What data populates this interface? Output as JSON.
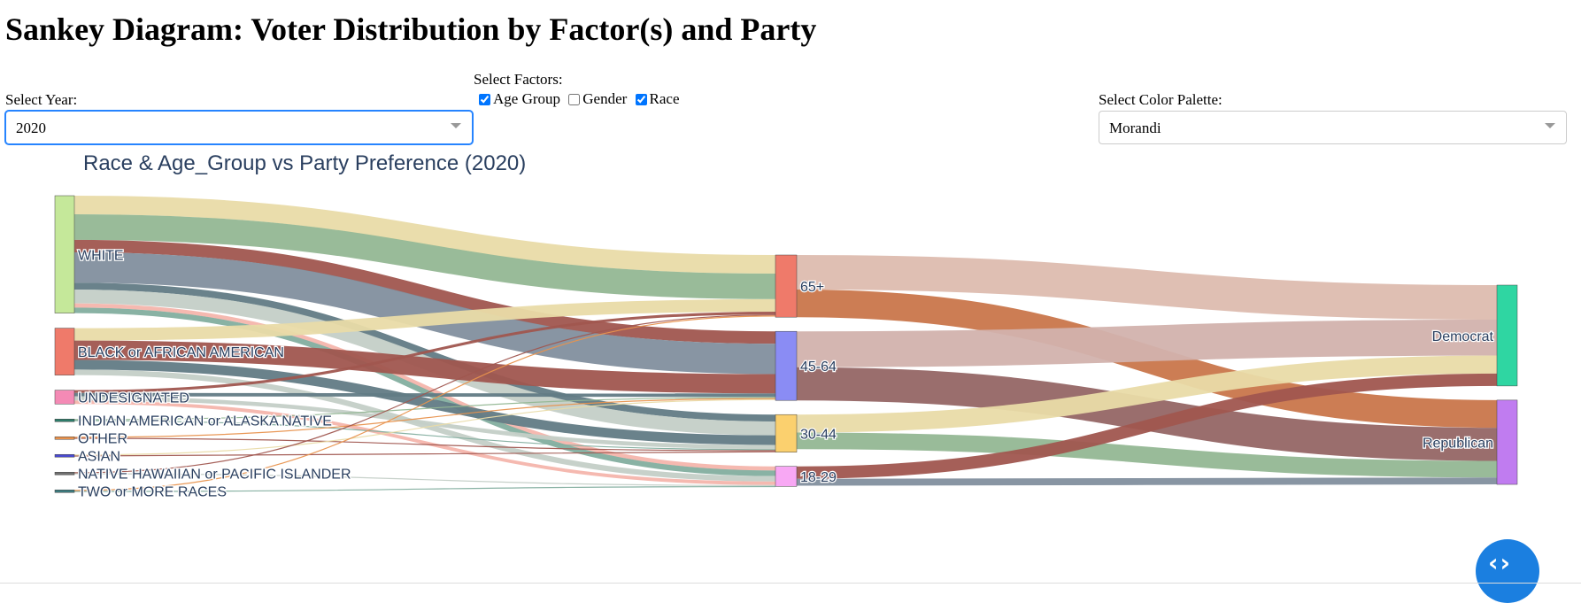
{
  "page": {
    "title": "Sankey Diagram: Voter Distribution by Factor(s) and Party"
  },
  "controls": {
    "year": {
      "label": "Select Year:",
      "value": "2020"
    },
    "factors": {
      "label": "Select Factors:",
      "options": [
        {
          "label": "Age Group",
          "checked": true
        },
        {
          "label": "Gender",
          "checked": false
        },
        {
          "label": "Race",
          "checked": true
        }
      ]
    },
    "palette": {
      "label": "Select Color Palette:",
      "value": "Morandi"
    }
  },
  "chart_data": {
    "type": "sankey",
    "title": "Race & Age_Group vs Party Preference (2020)",
    "units": "relative share (estimated from band widths)",
    "nodes": [
      {
        "label": "WHITE",
        "color": "#c5e89a"
      },
      {
        "label": "BLACK or AFRICAN AMERICAN",
        "color": "#ef7a6a"
      },
      {
        "label": "UNDESIGNATED",
        "color": "#f48ab5"
      },
      {
        "label": "INDIAN AMERICAN or ALASKA NATIVE",
        "color": "#2e7d6b"
      },
      {
        "label": "OTHER",
        "color": "#e8924d"
      },
      {
        "label": "ASIAN",
        "color": "#4a4ad0"
      },
      {
        "label": "NATIVE HAWAIIAN or PACIFIC ISLANDER",
        "color": "#707070"
      },
      {
        "label": "TWO or MORE RACES",
        "color": "#3d7b7e"
      },
      {
        "label": "65+",
        "color": "#ef7a6a"
      },
      {
        "label": "45-64",
        "color": "#8a8cf4"
      },
      {
        "label": "30-44",
        "color": "#fbd06e"
      },
      {
        "label": "18-29",
        "color": "#f8a8f4"
      },
      {
        "label": "Democrat",
        "color": "#2fd6a2"
      },
      {
        "label": "Republican",
        "color": "#c07cf0"
      }
    ],
    "links": [
      {
        "source": "WHITE",
        "target": "65+",
        "value": 27,
        "color": "#e9dba8"
      },
      {
        "source": "WHITE",
        "target": "65+",
        "value": 37,
        "color": "#93b793"
      },
      {
        "source": "WHITE",
        "target": "45-64",
        "value": 18,
        "color": "#a0564f"
      },
      {
        "source": "WHITE",
        "target": "45-64",
        "value": 44,
        "color": "#828f9e"
      },
      {
        "source": "WHITE",
        "target": "30-44",
        "value": 10,
        "color": "#627b85"
      },
      {
        "source": "WHITE",
        "target": "30-44",
        "value": 20,
        "color": "#c4cfc7"
      },
      {
        "source": "WHITE",
        "target": "18-29",
        "value": 6,
        "color": "#f4b5ac"
      },
      {
        "source": "WHITE",
        "target": "18-29",
        "value": 8,
        "color": "#83ae9f"
      },
      {
        "source": "BLACK or AFRICAN AMERICAN",
        "target": "65+",
        "value": 18,
        "color": "#e9dba8"
      },
      {
        "source": "BLACK or AFRICAN AMERICAN",
        "target": "45-64",
        "value": 28,
        "color": "#a0564f"
      },
      {
        "source": "BLACK or AFRICAN AMERICAN",
        "target": "30-44",
        "value": 14,
        "color": "#627b85"
      },
      {
        "source": "BLACK or AFRICAN AMERICAN",
        "target": "18-29",
        "value": 8,
        "color": "#c4cfc7"
      },
      {
        "source": "UNDESIGNATED",
        "target": "65+",
        "value": 4,
        "color": "#a0564f"
      },
      {
        "source": "UNDESIGNATED",
        "target": "45-64",
        "value": 5,
        "color": "#627b85"
      },
      {
        "source": "UNDESIGNATED",
        "target": "30-44",
        "value": 6,
        "color": "#c4cfc7"
      },
      {
        "source": "UNDESIGNATED",
        "target": "18-29",
        "value": 5,
        "color": "#f4b5ac"
      },
      {
        "source": "INDIAN AMERICAN or ALASKA NATIVE",
        "target": "45-64",
        "value": 1.5,
        "color": "#93b793"
      },
      {
        "source": "INDIAN AMERICAN or ALASKA NATIVE",
        "target": "30-44",
        "value": 1.5,
        "color": "#83ae9f"
      },
      {
        "source": "OTHER",
        "target": "45-64",
        "value": 1.5,
        "color": "#e8924d"
      },
      {
        "source": "OTHER",
        "target": "30-44",
        "value": 1.5,
        "color": "#a0564f"
      },
      {
        "source": "ASIAN",
        "target": "45-64",
        "value": 1.5,
        "color": "#e9dba8"
      },
      {
        "source": "ASIAN",
        "target": "30-44",
        "value": 1.5,
        "color": "#a0564f"
      },
      {
        "source": "NATIVE HAWAIIAN or PACIFIC ISLANDER",
        "target": "65+",
        "value": 1,
        "color": "#a0564f"
      },
      {
        "source": "NATIVE HAWAIIAN or PACIFIC ISLANDER",
        "target": "18-29",
        "value": 1,
        "color": "#c4cfc7"
      },
      {
        "source": "TWO or MORE RACES",
        "target": "65+",
        "value": 1,
        "color": "#e8924d"
      },
      {
        "source": "TWO or MORE RACES",
        "target": "18-29",
        "value": 1,
        "color": "#83ae9f"
      },
      {
        "source": "65+",
        "target": "Democrat",
        "value": 50,
        "color": "#ddbcaf"
      },
      {
        "source": "65+",
        "target": "Republican",
        "value": 40,
        "color": "#c9764b"
      },
      {
        "source": "45-64",
        "target": "Democrat",
        "value": 52,
        "color": "#d2b2ad"
      },
      {
        "source": "45-64",
        "target": "Republican",
        "value": 48,
        "color": "#956665"
      },
      {
        "source": "30-44",
        "target": "Democrat",
        "value": 26,
        "color": "#e9dba8"
      },
      {
        "source": "30-44",
        "target": "Republican",
        "value": 24,
        "color": "#93b793"
      },
      {
        "source": "18-29",
        "target": "Democrat",
        "value": 18,
        "color": "#a0564f"
      },
      {
        "source": "18-29",
        "target": "Republican",
        "value": 10,
        "color": "#828f9e"
      }
    ]
  },
  "ui": {
    "nav_icon": "code-brackets-icon",
    "nav_glyph": "‹›"
  }
}
